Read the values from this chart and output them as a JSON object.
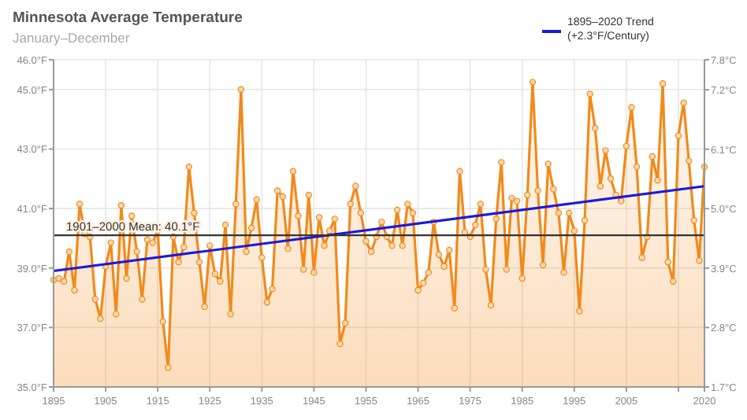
{
  "chart_data": {
    "type": "area",
    "title": "Minnesota Average Temperature",
    "subtitle": "January–December",
    "xlim": [
      1895,
      2020
    ],
    "xticks": [
      1895,
      1905,
      1915,
      1925,
      1935,
      1945,
      1955,
      1965,
      1975,
      1985,
      1995,
      2005,
      {
        "value": 2015,
        "label": null
      },
      2020
    ],
    "ylim": [
      35,
      46
    ],
    "yticks": [
      {
        "value": 35,
        "label": "35.0°F"
      },
      {
        "value": 37,
        "label": "37.0°F"
      },
      {
        "value": 39,
        "label": "39.0°F"
      },
      {
        "value": 41,
        "label": "41.0°F"
      },
      {
        "value": 43,
        "label": "43.0°F"
      },
      {
        "value": 45,
        "label": "45.0°F"
      },
      {
        "value": 46,
        "label": "46.0°F"
      }
    ],
    "y2lim": [
      1.67,
      7.78
    ],
    "y2ticks": [
      {
        "value": 1.67,
        "label": "1.7°C"
      },
      {
        "value": 2.78,
        "label": "2.8°C"
      },
      {
        "value": 3.89,
        "label": "3.9°C"
      },
      {
        "value": 5,
        "label": "5.0°C"
      },
      {
        "value": 6.11,
        "label": "6.1°C"
      },
      {
        "value": 7.22,
        "label": "7.2°C"
      },
      {
        "value": 7.78,
        "label": "7.8°C"
      }
    ],
    "grid": true,
    "legend": "top right",
    "marker": "circle",
    "ref_lines": [
      {
        "axis": "y",
        "value": 40.1,
        "label": "1901–2000 Mean: 40.1°F",
        "color": "#333333"
      }
    ],
    "series": [
      {
        "color": "#f28a1a",
        "x": [
          1895,
          1896,
          1897,
          1898,
          1899,
          1900,
          1901,
          1902,
          1903,
          1904,
          1905,
          1906,
          1907,
          1908,
          1909,
          1910,
          1911,
          1912,
          1913,
          1914,
          1915,
          1916,
          1917,
          1918,
          1919,
          1920,
          1921,
          1922,
          1923,
          1924,
          1925,
          1926,
          1927,
          1928,
          1929,
          1930,
          1931,
          1932,
          1933,
          1934,
          1935,
          1936,
          1937,
          1938,
          1939,
          1940,
          1941,
          1942,
          1943,
          1944,
          1945,
          1946,
          1947,
          1948,
          1949,
          1950,
          1951,
          1952,
          1953,
          1954,
          1955,
          1956,
          1957,
          1958,
          1959,
          1960,
          1961,
          1962,
          1963,
          1964,
          1965,
          1966,
          1967,
          1968,
          1969,
          1970,
          1971,
          1972,
          1973,
          1974,
          1975,
          1976,
          1977,
          1978,
          1979,
          1980,
          1981,
          1982,
          1983,
          1984,
          1985,
          1986,
          1987,
          1988,
          1989,
          1990,
          1991,
          1992,
          1993,
          1994,
          1995,
          1996,
          1997,
          1998,
          1999,
          2000,
          2001,
          2002,
          2003,
          2004,
          2005,
          2006,
          2007,
          2008,
          2009,
          2010,
          2011,
          2012,
          2013,
          2014,
          2015,
          2016,
          2017,
          2018,
          2019,
          2020
        ],
        "values": [
          38.6,
          38.65,
          38.55,
          39.55,
          38.25,
          41.15,
          40.15,
          40.05,
          37.95,
          37.3,
          39.05,
          39.85,
          37.45,
          41.1,
          38.65,
          40.75,
          39.55,
          37.95,
          39.95,
          39.85,
          40.25,
          37.2,
          35.65,
          40.05,
          39.2,
          39.7,
          42.4,
          40.85,
          39.2,
          37.7,
          39.75,
          38.8,
          38.55,
          40.45,
          37.45,
          41.15,
          45.0,
          39.55,
          40.35,
          41.3,
          39.35,
          37.85,
          38.3,
          41.6,
          41.4,
          39.65,
          42.25,
          40.75,
          38.95,
          41.45,
          38.85,
          40.7,
          39.75,
          40.25,
          40.65,
          36.45,
          37.15,
          41.15,
          41.75,
          40.85,
          39.9,
          39.55,
          40.05,
          40.55,
          40.05,
          39.75,
          40.95,
          39.75,
          41.15,
          40.85,
          38.25,
          38.5,
          38.85,
          40.55,
          39.45,
          39.05,
          39.6,
          37.65,
          42.25,
          40.2,
          40.05,
          40.45,
          41.15,
          38.95,
          37.75,
          40.65,
          42.55,
          38.95,
          41.35,
          41.25,
          38.65,
          41.45,
          45.25,
          41.6,
          39.1,
          42.5,
          41.65,
          40.85,
          38.85,
          40.85,
          40.25,
          37.55,
          40.6,
          44.85,
          43.7,
          41.75,
          42.95,
          42.0,
          41.45,
          41.25,
          43.1,
          44.4,
          42.4,
          39.35,
          40.05,
          42.75,
          41.95,
          45.2,
          39.2,
          38.55,
          43.45,
          44.55,
          42.6,
          40.6,
          39.25,
          42.4
        ]
      },
      {
        "type": "line",
        "name": "1895–2020 Trend (+2.3°F/Century)",
        "color": "#1a1adb",
        "marker": "none",
        "x": [
          1895,
          2020
        ],
        "values": [
          38.9,
          41.75
        ]
      }
    ]
  }
}
